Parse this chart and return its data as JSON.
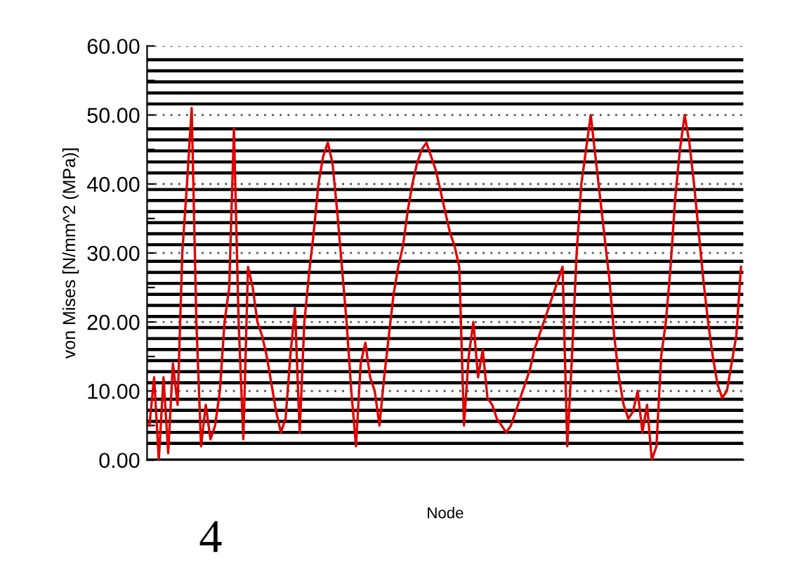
{
  "chart_data": {
    "type": "line",
    "xlabel": "Node",
    "ylabel": "von Mises [N/mm^2 (MPa)]",
    "ylim": [
      0,
      60
    ],
    "yticks": [
      {
        "value": 0,
        "label": "0.00"
      },
      {
        "value": 5,
        "label": null
      },
      {
        "value": 10,
        "label": "10.00"
      },
      {
        "value": 15,
        "label": null
      },
      {
        "value": 20,
        "label": "20.00"
      },
      {
        "value": 25,
        "label": null
      },
      {
        "value": 30,
        "label": "30.00"
      },
      {
        "value": 35,
        "label": null
      },
      {
        "value": 40,
        "label": "40.00"
      },
      {
        "value": 45,
        "label": null
      },
      {
        "value": 50,
        "label": "50.00"
      },
      {
        "value": 55,
        "label": null
      },
      {
        "value": 60,
        "label": "60.00"
      }
    ],
    "grid": "y",
    "tick_labels": "y",
    "legend": false,
    "marker": "none",
    "line_style": "solid",
    "annotations": [
      "4"
    ],
    "ref_lines": [
      {
        "axis": "y",
        "value": 0,
        "color": "#000000"
      },
      {
        "axis": "y",
        "value": 2.4,
        "color": "#000000"
      },
      {
        "axis": "y",
        "value": 4.0,
        "color": "#000000"
      },
      {
        "axis": "y",
        "value": 5.6,
        "color": "#000000"
      },
      {
        "axis": "y",
        "value": 7.2,
        "color": "#000000"
      },
      {
        "axis": "y",
        "value": 8.8,
        "color": "#000000"
      },
      {
        "axis": "y",
        "value": 11.2,
        "color": "#000000"
      },
      {
        "axis": "y",
        "value": 12.8,
        "color": "#000000"
      },
      {
        "axis": "y",
        "value": 14.4,
        "color": "#000000"
      },
      {
        "axis": "y",
        "value": 16.0,
        "color": "#000000"
      },
      {
        "axis": "y",
        "value": 17.6,
        "color": "#000000"
      },
      {
        "axis": "y",
        "value": 19.2,
        "color": "#000000"
      },
      {
        "axis": "y",
        "value": 20.8,
        "color": "#000000"
      },
      {
        "axis": "y",
        "value": 22.4,
        "color": "#000000"
      },
      {
        "axis": "y",
        "value": 24.0,
        "color": "#000000"
      },
      {
        "axis": "y",
        "value": 25.6,
        "color": "#000000"
      },
      {
        "axis": "y",
        "value": 27.2,
        "color": "#000000"
      },
      {
        "axis": "y",
        "value": 28.8,
        "color": "#000000"
      },
      {
        "axis": "y",
        "value": 31.2,
        "color": "#000000"
      },
      {
        "axis": "y",
        "value": 32.8,
        "color": "#000000"
      },
      {
        "axis": "y",
        "value": 34.4,
        "color": "#000000"
      },
      {
        "axis": "y",
        "value": 36.0,
        "color": "#000000"
      },
      {
        "axis": "y",
        "value": 37.6,
        "color": "#000000"
      },
      {
        "axis": "y",
        "value": 39.2,
        "color": "#000000"
      },
      {
        "axis": "y",
        "value": 41.6,
        "color": "#000000"
      },
      {
        "axis": "y",
        "value": 43.2,
        "color": "#000000"
      },
      {
        "axis": "y",
        "value": 44.8,
        "color": "#000000"
      },
      {
        "axis": "y",
        "value": 46.4,
        "color": "#000000"
      },
      {
        "axis": "y",
        "value": 48.0,
        "color": "#000000"
      },
      {
        "axis": "y",
        "value": 51.6,
        "color": "#000000"
      },
      {
        "axis": "y",
        "value": 53.2,
        "color": "#000000"
      },
      {
        "axis": "y",
        "value": 54.8,
        "color": "#000000"
      },
      {
        "axis": "y",
        "value": 56.4,
        "color": "#000000"
      },
      {
        "axis": "y",
        "value": 58.0,
        "color": "#000000"
      }
    ],
    "categories": [
      null,
      null,
      null,
      null,
      null,
      null,
      null,
      null,
      null,
      null,
      null,
      null,
      null,
      null,
      null,
      null,
      null,
      null,
      null,
      null,
      null,
      null,
      null,
      null,
      null,
      null,
      null,
      null,
      null,
      null,
      null,
      null,
      null,
      null,
      null,
      null,
      null,
      null,
      null,
      null,
      null,
      null,
      null,
      null,
      null,
      null,
      null,
      null,
      null,
      null,
      null,
      null,
      null,
      null,
      null,
      null,
      null,
      null,
      null,
      null,
      null,
      null,
      null,
      null,
      null,
      null,
      null,
      null,
      null,
      null,
      null,
      null,
      null,
      null,
      null,
      null,
      null,
      null,
      null,
      null,
      null,
      null,
      null,
      null,
      null,
      null,
      null,
      null,
      null,
      null,
      null,
      null,
      null,
      null,
      null,
      null,
      null,
      null,
      null,
      null,
      null,
      null,
      null,
      null,
      null,
      null,
      null,
      null,
      null,
      null,
      null,
      null,
      null,
      null,
      null,
      null,
      null,
      null,
      null,
      null,
      null,
      null,
      null,
      null,
      null,
      null,
      null
    ],
    "series": [
      {
        "color": "#e00000",
        "values": [
          5,
          12,
          0,
          12,
          1,
          14,
          8,
          30,
          40,
          51,
          20,
          2,
          8,
          3,
          5,
          10,
          20,
          25,
          48,
          20,
          3,
          28,
          25,
          20,
          18,
          15,
          11,
          7,
          4,
          6,
          15,
          22,
          4,
          20,
          27,
          33,
          40,
          44,
          46,
          43,
          36,
          28,
          20,
          10,
          2,
          14,
          17,
          12,
          10,
          5,
          12,
          18,
          24,
          28,
          31,
          36,
          40,
          43,
          45,
          46,
          44,
          42,
          39,
          36,
          33,
          31,
          28,
          5,
          15,
          20,
          12,
          16,
          9,
          8,
          6,
          5,
          4,
          5,
          7,
          9,
          11,
          13,
          16,
          18,
          20,
          22,
          24,
          26,
          28,
          2,
          15,
          30,
          40,
          45,
          50,
          44,
          38,
          32,
          26,
          18,
          12,
          8,
          6,
          7,
          10,
          4,
          8,
          0,
          2,
          15,
          20,
          28,
          38,
          45,
          50,
          46,
          40,
          33,
          26,
          20,
          15,
          11,
          9,
          10,
          14,
          18,
          28
        ]
      }
    ]
  }
}
